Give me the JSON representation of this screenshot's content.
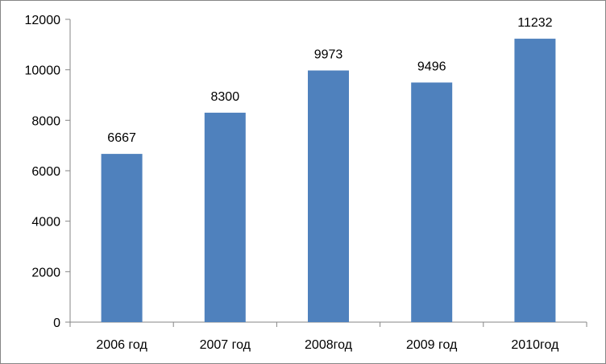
{
  "chart_data": {
    "type": "bar",
    "categories": [
      "2006 год",
      "2007 год",
      "2008год",
      "2009 год",
      "2010год"
    ],
    "values": [
      6667,
      8300,
      9973,
      9496,
      11232
    ],
    "data_labels": [
      "6667",
      "8300",
      "9973",
      "9496",
      "11232"
    ],
    "ylim": [
      0,
      12000
    ],
    "yticks": [
      "0",
      "2000",
      "4000",
      "6000",
      "8000",
      "10000",
      "12000"
    ],
    "ytick_values": [
      0,
      2000,
      4000,
      6000,
      8000,
      10000,
      12000
    ],
    "grid": false,
    "legend": "none",
    "bar_color": "#4F81BD"
  }
}
